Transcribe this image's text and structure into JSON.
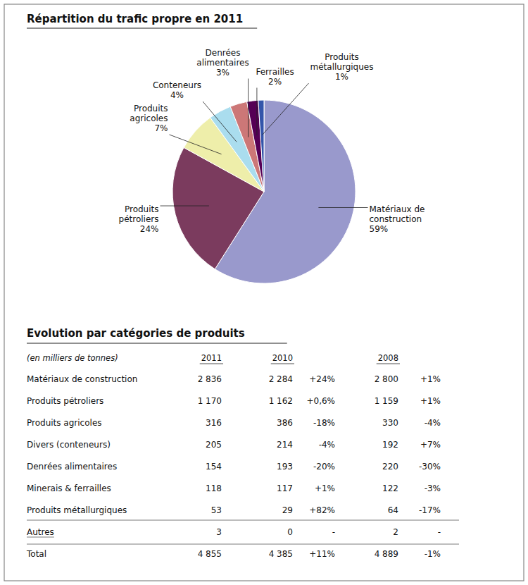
{
  "chart_data": [
    {
      "type": "pie",
      "title": "Répartition du trafic propre en 2011",
      "categories": [
        "Matériaux de\nconstruction",
        "Produits\npétroliers",
        "Produits\nagricoles",
        "Conteneurs",
        "Denrées\nalimentaires",
        "Ferrailles",
        "Produits\nmétallurgiques"
      ],
      "values": [
        59,
        24,
        7,
        4,
        3,
        2,
        1
      ],
      "value_labels": [
        "59%",
        "24%",
        "7%",
        "4%",
        "3%",
        "2%",
        "1%"
      ],
      "colors": [
        "#9999cc",
        "#7B3B5E",
        "#EEEEAA",
        "#AADDEE",
        "#CC7777",
        "#550055",
        "#3355AA"
      ],
      "data_labels": true
    },
    {
      "type": "table",
      "title": "Evolution par catégories de produits",
      "columns": [
        "(en milliers de tonnes)",
        "2011",
        "2010",
        null,
        "2008",
        null
      ],
      "rows": [
        [
          "Matériaux de construction",
          "2 836",
          "2 284",
          "+24%",
          "2 800",
          "+1%"
        ],
        [
          "Produits pétroliers",
          "1 170",
          "1 162",
          "+0,6%",
          "1 159",
          "+1%"
        ],
        [
          "Produits agricoles",
          "316",
          "386",
          "-18%",
          "330",
          "-4%"
        ],
        [
          "Divers (conteneurs)",
          "205",
          "214",
          "-4%",
          "192",
          "+7%"
        ],
        [
          "Denrées alimentaires",
          "154",
          "193",
          "-20%",
          "220",
          "-30%"
        ],
        [
          "Minerais & ferrailles",
          "118",
          "117",
          "+1%",
          "122",
          "-3%"
        ],
        [
          "Produits métallurgiques",
          "53",
          "29",
          "+82%",
          "64",
          "-17%"
        ],
        [
          "Autres",
          "3",
          "0",
          "-",
          "2",
          "-"
        ],
        [
          "Total",
          "4 855",
          "4 385",
          "+11%",
          "4 889",
          "-1%"
        ]
      ]
    }
  ]
}
